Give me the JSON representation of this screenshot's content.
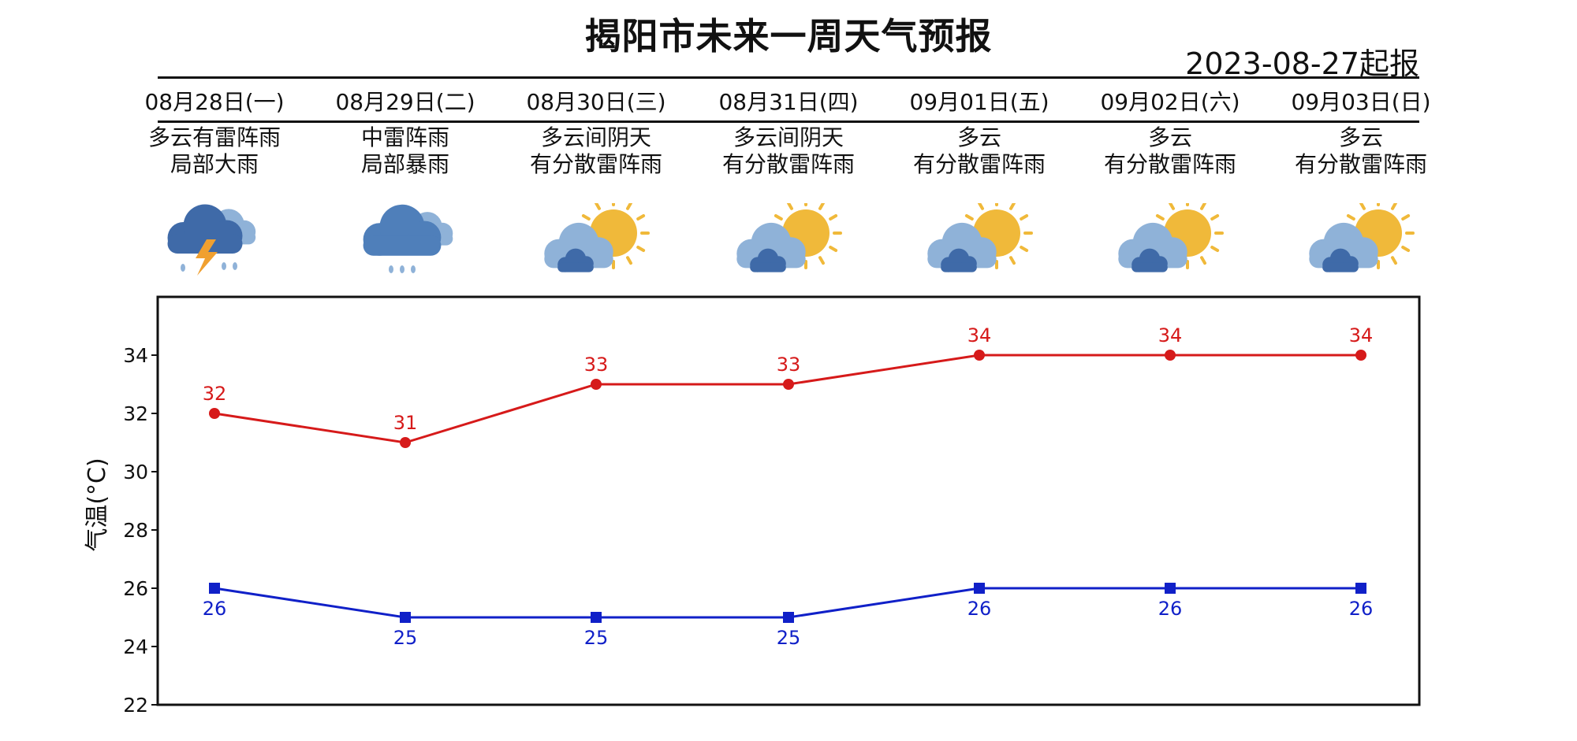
{
  "title": "揭阳市未来一周天气预报",
  "issued": "2023-08-27起报",
  "days": [
    {
      "date": "08月28日(一)",
      "desc1": "多云有雷阵雨",
      "desc2": "局部大雨",
      "icon": "thunderstorm-icon"
    },
    {
      "date": "08月29日(二)",
      "desc1": "中雷阵雨",
      "desc2": "局部暴雨",
      "icon": "rain-cloud-icon"
    },
    {
      "date": "08月30日(三)",
      "desc1": "多云间阴天",
      "desc2": "有分散雷阵雨",
      "icon": "partly-cloudy-icon"
    },
    {
      "date": "08月31日(四)",
      "desc1": "多云间阴天",
      "desc2": "有分散雷阵雨",
      "icon": "partly-cloudy-icon"
    },
    {
      "date": "09月01日(五)",
      "desc1": "多云",
      "desc2": "有分散雷阵雨",
      "icon": "partly-cloudy-icon"
    },
    {
      "date": "09月02日(六)",
      "desc1": "多云",
      "desc2": "有分散雷阵雨",
      "icon": "partly-cloudy-icon"
    },
    {
      "date": "09月03日(日)",
      "desc1": "多云",
      "desc2": "有分散雷阵雨",
      "icon": "partly-cloudy-icon"
    }
  ],
  "colors": {
    "high": "#d61a1a",
    "low": "#1020c8",
    "sun": "#f0b93a",
    "cloud_light": "#8fb2d8",
    "cloud_dark": "#3f6aa8",
    "bolt": "#f0a030"
  },
  "chart_data": {
    "type": "line",
    "categories": [
      "08月28日(一)",
      "08月29日(二)",
      "08月30日(三)",
      "08月31日(四)",
      "09月01日(五)",
      "09月02日(六)",
      "09月03日(日)"
    ],
    "series": [
      {
        "values": [
          32,
          31,
          33,
          33,
          34,
          34,
          34
        ],
        "color": "#d61a1a",
        "marker": "circle"
      },
      {
        "values": [
          26,
          25,
          25,
          25,
          26,
          26,
          26
        ],
        "color": "#1020c8",
        "marker": "square"
      }
    ],
    "ylabel": "气温(°C)",
    "ylim": [
      22,
      36
    ],
    "yticks": [
      22,
      24,
      26,
      28,
      30,
      32,
      34
    ],
    "grid": false
  }
}
